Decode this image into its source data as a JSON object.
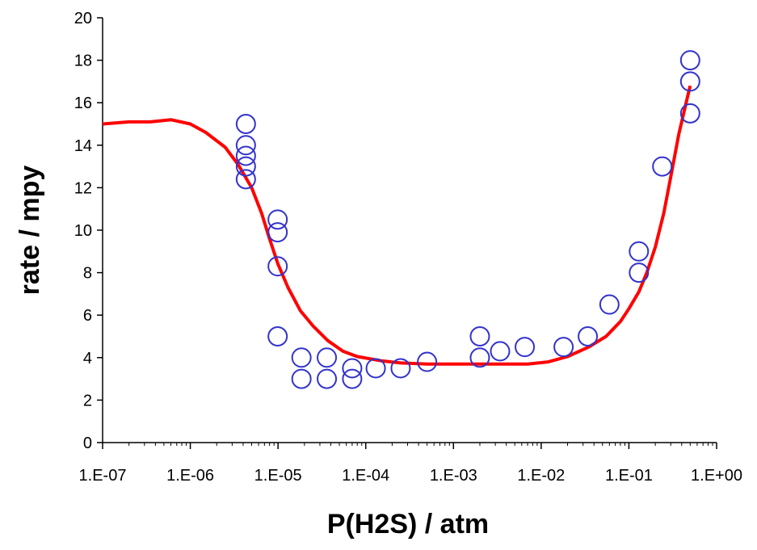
{
  "chart_data": {
    "type": "scatter",
    "title": "",
    "xlabel": "P(H2S) / atm",
    "ylabel": "rate / mpy",
    "x_scale": "log",
    "x_ticks": [
      "1.E-07",
      "1.E-06",
      "1.E-05",
      "1.E-04",
      "1.E-03",
      "1.E-02",
      "1.E-01",
      "1.E+00"
    ],
    "x_tick_values": [
      1e-07,
      1e-06,
      1e-05,
      0.0001,
      0.001,
      0.01,
      0.1,
      1
    ],
    "xlim": [
      1e-07,
      1
    ],
    "ylim": [
      0,
      20
    ],
    "y_ticks": [
      "0",
      "2",
      "4",
      "6",
      "8",
      "10",
      "12",
      "14",
      "16",
      "18",
      "20"
    ],
    "y_tick_values": [
      0,
      2,
      4,
      6,
      8,
      10,
      12,
      14,
      16,
      18,
      20
    ],
    "grid": false,
    "legend": "none",
    "series": [
      {
        "kind": "scatter",
        "color": "#3333cc",
        "marker": "open-circle",
        "points": [
          {
            "x": 4.3e-06,
            "y": 15.0
          },
          {
            "x": 4.3e-06,
            "y": 14.0
          },
          {
            "x": 4.3e-06,
            "y": 13.5
          },
          {
            "x": 4.3e-06,
            "y": 13.0
          },
          {
            "x": 4.3e-06,
            "y": 12.4
          },
          {
            "x": 9.9e-06,
            "y": 10.5
          },
          {
            "x": 9.9e-06,
            "y": 9.9
          },
          {
            "x": 9.9e-06,
            "y": 8.3
          },
          {
            "x": 9.9e-06,
            "y": 5.0
          },
          {
            "x": 1.85e-05,
            "y": 4.0
          },
          {
            "x": 1.85e-05,
            "y": 3.0
          },
          {
            "x": 3.6e-05,
            "y": 4.0
          },
          {
            "x": 3.6e-05,
            "y": 3.0
          },
          {
            "x": 7e-05,
            "y": 3.5
          },
          {
            "x": 7e-05,
            "y": 3.0
          },
          {
            "x": 0.00013,
            "y": 3.5
          },
          {
            "x": 0.00025,
            "y": 3.5
          },
          {
            "x": 0.0005,
            "y": 3.8
          },
          {
            "x": 0.002,
            "y": 5.0
          },
          {
            "x": 0.002,
            "y": 4.0
          },
          {
            "x": 0.0034,
            "y": 4.3
          },
          {
            "x": 0.0065,
            "y": 4.5
          },
          {
            "x": 0.018,
            "y": 4.5
          },
          {
            "x": 0.034,
            "y": 5.0
          },
          {
            "x": 0.06,
            "y": 6.5
          },
          {
            "x": 0.13,
            "y": 9.0
          },
          {
            "x": 0.13,
            "y": 8.0
          },
          {
            "x": 0.24,
            "y": 13.0
          },
          {
            "x": 0.5,
            "y": 18.0
          },
          {
            "x": 0.5,
            "y": 17.0
          },
          {
            "x": 0.5,
            "y": 15.5
          }
        ]
      },
      {
        "kind": "line",
        "color": "#ff0000",
        "points": [
          {
            "x": 1e-07,
            "y": 15.0
          },
          {
            "x": 2e-07,
            "y": 15.1
          },
          {
            "x": 3.5e-07,
            "y": 15.1
          },
          {
            "x": 6e-07,
            "y": 15.2
          },
          {
            "x": 1e-06,
            "y": 15.0
          },
          {
            "x": 1.5e-06,
            "y": 14.6
          },
          {
            "x": 2.5e-06,
            "y": 13.9
          },
          {
            "x": 3.5e-06,
            "y": 13.1
          },
          {
            "x": 5e-06,
            "y": 12.0
          },
          {
            "x": 6.5e-06,
            "y": 10.8
          },
          {
            "x": 8e-06,
            "y": 9.6
          },
          {
            "x": 1e-05,
            "y": 8.4
          },
          {
            "x": 1.3e-05,
            "y": 7.3
          },
          {
            "x": 1.8e-05,
            "y": 6.2
          },
          {
            "x": 2.5e-05,
            "y": 5.5
          },
          {
            "x": 3.7e-05,
            "y": 4.8
          },
          {
            "x": 5.5e-05,
            "y": 4.3
          },
          {
            "x": 8e-05,
            "y": 4.05
          },
          {
            "x": 0.00015,
            "y": 3.85
          },
          {
            "x": 0.00025,
            "y": 3.75
          },
          {
            "x": 0.0005,
            "y": 3.7
          },
          {
            "x": 0.001,
            "y": 3.7
          },
          {
            "x": 0.003,
            "y": 3.7
          },
          {
            "x": 0.007,
            "y": 3.7
          },
          {
            "x": 0.012,
            "y": 3.8
          },
          {
            "x": 0.02,
            "y": 4.05
          },
          {
            "x": 0.035,
            "y": 4.5
          },
          {
            "x": 0.055,
            "y": 5.0
          },
          {
            "x": 0.08,
            "y": 5.7
          },
          {
            "x": 0.1,
            "y": 6.3
          },
          {
            "x": 0.13,
            "y": 7.1
          },
          {
            "x": 0.16,
            "y": 8.0
          },
          {
            "x": 0.2,
            "y": 9.2
          },
          {
            "x": 0.25,
            "y": 10.8
          },
          {
            "x": 0.3,
            "y": 12.5
          },
          {
            "x": 0.37,
            "y": 14.5
          },
          {
            "x": 0.45,
            "y": 16.0
          },
          {
            "x": 0.5,
            "y": 16.8
          }
        ]
      }
    ]
  }
}
